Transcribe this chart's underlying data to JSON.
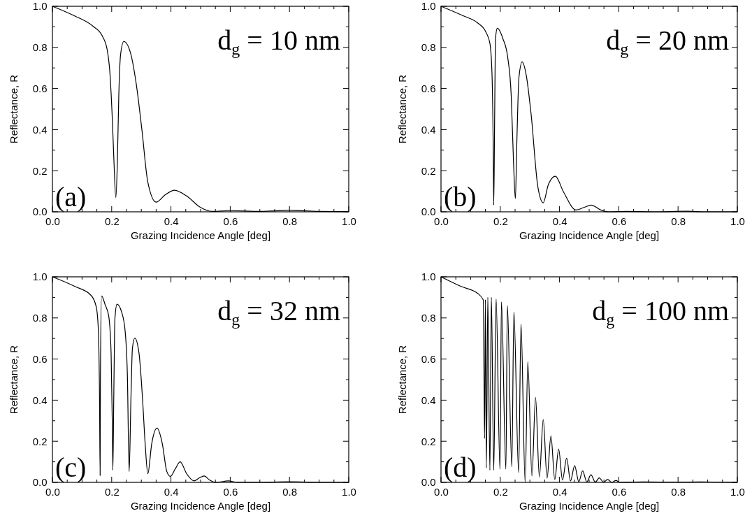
{
  "chart_data": [
    {
      "type": "line",
      "xlabel": "Grazing Incidence Angle [deg]",
      "ylabel": "Reflectance, R",
      "annotations": [
        "d$_{g}$ = 10 nm",
        "(a)"
      ],
      "xlim": [
        0,
        1
      ],
      "ylim": [
        0,
        1
      ],
      "xticks": [
        {
          "value": 0,
          "label": "0.0"
        },
        {
          "value": 0.05,
          "label": null
        },
        {
          "value": 0.1,
          "label": null
        },
        {
          "value": 0.15,
          "label": null
        },
        {
          "value": 0.2,
          "label": "0.2"
        },
        {
          "value": 0.25,
          "label": null
        },
        {
          "value": 0.3,
          "label": null
        },
        {
          "value": 0.35,
          "label": null
        },
        {
          "value": 0.4,
          "label": "0.4"
        },
        {
          "value": 0.45,
          "label": null
        },
        {
          "value": 0.5,
          "label": null
        },
        {
          "value": 0.55,
          "label": null
        },
        {
          "value": 0.6,
          "label": "0.6"
        },
        {
          "value": 0.65,
          "label": null
        },
        {
          "value": 0.7,
          "label": null
        },
        {
          "value": 0.75,
          "label": null
        },
        {
          "value": 0.8,
          "label": "0.8"
        },
        {
          "value": 0.85,
          "label": null
        },
        {
          "value": 0.9,
          "label": null
        },
        {
          "value": 0.95,
          "label": null
        },
        {
          "value": 1,
          "label": "1.0"
        }
      ],
      "yticks": [
        {
          "value": 0,
          "label": "0.0"
        },
        {
          "value": 0.1,
          "label": null
        },
        {
          "value": 0.2,
          "label": "0.2"
        },
        {
          "value": 0.3,
          "label": null
        },
        {
          "value": 0.4,
          "label": "0.4"
        },
        {
          "value": 0.5,
          "label": null
        },
        {
          "value": 0.6,
          "label": "0.6"
        },
        {
          "value": 0.7,
          "label": null
        },
        {
          "value": 0.8,
          "label": "0.8"
        },
        {
          "value": 0.9,
          "label": null
        },
        {
          "value": 1,
          "label": "1.0"
        }
      ],
      "series": [
        {
          "color": "#000000",
          "x": [
            0,
            0.075,
            0.137,
            0.169,
            0.185,
            0.194,
            0.202,
            0.208,
            0.214,
            0.219,
            0.224,
            0.23,
            0.241,
            0.263,
            0.283,
            0.302,
            0.322,
            0.35,
            0.381,
            0.412,
            0.452,
            0.499,
            0.538,
            0.601,
            0.703,
            0.797,
            0.899,
            1
          ],
          "values": [
            1,
            0.953,
            0.903,
            0.854,
            0.787,
            0.676,
            0.455,
            0.233,
            0.069,
            0.233,
            0.565,
            0.765,
            0.829,
            0.776,
            0.621,
            0.399,
            0.144,
            0.047,
            0.083,
            0.105,
            0.078,
            0.022,
            0.002,
            0.006,
            0.002,
            0.007,
            0.002,
            0.001
          ]
        }
      ]
    },
    {
      "type": "line",
      "xlabel": "Grazing Incidence Angle [deg]",
      "ylabel": "Reflectance, R",
      "annotations": [
        "d$_{g}$ = 20 nm",
        "(b)"
      ],
      "xlim": [
        0,
        1
      ],
      "ylim": [
        0,
        1
      ],
      "xticks": [
        {
          "value": 0,
          "label": "0.0"
        },
        {
          "value": 0.05,
          "label": null
        },
        {
          "value": 0.1,
          "label": null
        },
        {
          "value": 0.15,
          "label": null
        },
        {
          "value": 0.2,
          "label": "0.2"
        },
        {
          "value": 0.25,
          "label": null
        },
        {
          "value": 0.3,
          "label": null
        },
        {
          "value": 0.35,
          "label": null
        },
        {
          "value": 0.4,
          "label": "0.4"
        },
        {
          "value": 0.45,
          "label": null
        },
        {
          "value": 0.5,
          "label": null
        },
        {
          "value": 0.55,
          "label": null
        },
        {
          "value": 0.6,
          "label": "0.6"
        },
        {
          "value": 0.65,
          "label": null
        },
        {
          "value": 0.7,
          "label": null
        },
        {
          "value": 0.75,
          "label": null
        },
        {
          "value": 0.8,
          "label": "0.8"
        },
        {
          "value": 0.85,
          "label": null
        },
        {
          "value": 0.9,
          "label": null
        },
        {
          "value": 0.95,
          "label": null
        },
        {
          "value": 1,
          "label": "1.0"
        }
      ],
      "yticks": [
        {
          "value": 0,
          "label": "0.0"
        },
        {
          "value": 0.1,
          "label": null
        },
        {
          "value": 0.2,
          "label": "0.2"
        },
        {
          "value": 0.3,
          "label": null
        },
        {
          "value": 0.4,
          "label": "0.4"
        },
        {
          "value": 0.5,
          "label": null
        },
        {
          "value": 0.6,
          "label": "0.6"
        },
        {
          "value": 0.7,
          "label": null
        },
        {
          "value": 0.8,
          "label": "0.8"
        },
        {
          "value": 0.9,
          "label": null
        },
        {
          "value": 1,
          "label": "1.0"
        }
      ],
      "series": [
        {
          "color": "#000000",
          "x": [
            0,
            0.076,
            0.123,
            0.151,
            0.165,
            0.172,
            0.176,
            0.178,
            0.181,
            0.184,
            0.19,
            0.209,
            0.225,
            0.237,
            0.245,
            0.251,
            0.256,
            0.263,
            0.274,
            0.288,
            0.304,
            0.327,
            0.345,
            0.362,
            0.386,
            0.413,
            0.456,
            0.484,
            0.507,
            0.539,
            0.566,
            0.625,
            0.719,
            0.829,
            0.892,
            1
          ],
          "values": [
            1,
            0.953,
            0.92,
            0.876,
            0.82,
            0.676,
            0.342,
            0.033,
            0.453,
            0.842,
            0.893,
            0.842,
            0.753,
            0.564,
            0.231,
            0.064,
            0.342,
            0.653,
            0.729,
            0.662,
            0.476,
            0.12,
            0.044,
            0.131,
            0.173,
            0.098,
            0.009,
            0.022,
            0.033,
            0.009,
            0,
            0.002,
            0,
            0.003,
            0,
            0
          ]
        }
      ]
    },
    {
      "type": "line",
      "xlabel": "Grazing Incidence Angle [deg]",
      "ylabel": "Reflectance, R",
      "annotations": [
        "d$_{g}$ = 32 nm",
        "(c)"
      ],
      "xlim": [
        0,
        1
      ],
      "ylim": [
        0,
        1
      ],
      "xticks": [
        {
          "value": 0,
          "label": "0.0"
        },
        {
          "value": 0.05,
          "label": null
        },
        {
          "value": 0.1,
          "label": null
        },
        {
          "value": 0.15,
          "label": null
        },
        {
          "value": 0.2,
          "label": "0.2"
        },
        {
          "value": 0.25,
          "label": null
        },
        {
          "value": 0.3,
          "label": null
        },
        {
          "value": 0.35,
          "label": null
        },
        {
          "value": 0.4,
          "label": "0.4"
        },
        {
          "value": 0.45,
          "label": null
        },
        {
          "value": 0.5,
          "label": null
        },
        {
          "value": 0.55,
          "label": null
        },
        {
          "value": 0.6,
          "label": "0.6"
        },
        {
          "value": 0.65,
          "label": null
        },
        {
          "value": 0.7,
          "label": null
        },
        {
          "value": 0.75,
          "label": null
        },
        {
          "value": 0.8,
          "label": "0.8"
        },
        {
          "value": 0.85,
          "label": null
        },
        {
          "value": 0.9,
          "label": null
        },
        {
          "value": 0.95,
          "label": null
        },
        {
          "value": 1,
          "label": "1.0"
        }
      ],
      "yticks": [
        {
          "value": 0,
          "label": "0.0"
        },
        {
          "value": 0.1,
          "label": null
        },
        {
          "value": 0.2,
          "label": "0.2"
        },
        {
          "value": 0.3,
          "label": null
        },
        {
          "value": 0.4,
          "label": "0.4"
        },
        {
          "value": 0.5,
          "label": null
        },
        {
          "value": 0.6,
          "label": "0.6"
        },
        {
          "value": 0.7,
          "label": null
        },
        {
          "value": 0.8,
          "label": "0.8"
        },
        {
          "value": 0.9,
          "label": null
        },
        {
          "value": 1,
          "label": "1.0"
        }
      ],
      "series": [
        {
          "color": "#000000",
          "x": [
            0,
            0.076,
            0.131,
            0.148,
            0.155,
            0.159,
            0.161,
            0.162,
            0.166,
            0.178,
            0.19,
            0.198,
            0.202,
            0.204,
            0.207,
            0.211,
            0.218,
            0.233,
            0.245,
            0.253,
            0.259,
            0.265,
            0.27,
            0.278,
            0.292,
            0.304,
            0.313,
            0.322,
            0.335,
            0.353,
            0.371,
            0.386,
            0.398,
            0.414,
            0.431,
            0.453,
            0.478,
            0.496,
            0.512,
            0.531,
            0.551,
            0.594,
            0.626,
            0.704,
            0.799,
            0.9,
            1
          ],
          "values": [
            1,
            0.953,
            0.909,
            0.853,
            0.742,
            0.409,
            0.033,
            0.52,
            0.907,
            0.864,
            0.809,
            0.631,
            0.298,
            0.059,
            0.409,
            0.798,
            0.867,
            0.831,
            0.742,
            0.52,
            0.053,
            0.409,
            0.653,
            0.702,
            0.631,
            0.409,
            0.187,
            0.042,
            0.187,
            0.264,
            0.187,
            0.053,
            0.029,
            0.064,
            0.1,
            0.042,
            0.007,
            0.022,
            0.031,
            0.011,
            0,
            0.007,
            0,
            0,
            0.003,
            0,
            0
          ]
        }
      ]
    },
    {
      "type": "line",
      "xlabel": "Grazing Incidence Angle [deg]",
      "ylabel": "Reflectance, R",
      "annotations": [
        "d$_{g}$ = 100 nm",
        "(d)"
      ],
      "xlim": [
        0,
        1
      ],
      "ylim": [
        0,
        1
      ],
      "xticks": [
        {
          "value": 0,
          "label": "0.0"
        },
        {
          "value": 0.05,
          "label": null
        },
        {
          "value": 0.1,
          "label": null
        },
        {
          "value": 0.15,
          "label": null
        },
        {
          "value": 0.2,
          "label": "0.2"
        },
        {
          "value": 0.25,
          "label": null
        },
        {
          "value": 0.3,
          "label": null
        },
        {
          "value": 0.35,
          "label": null
        },
        {
          "value": 0.4,
          "label": "0.4"
        },
        {
          "value": 0.45,
          "label": null
        },
        {
          "value": 0.5,
          "label": null
        },
        {
          "value": 0.55,
          "label": null
        },
        {
          "value": 0.6,
          "label": "0.6"
        },
        {
          "value": 0.65,
          "label": null
        },
        {
          "value": 0.7,
          "label": null
        },
        {
          "value": 0.75,
          "label": null
        },
        {
          "value": 0.8,
          "label": "0.8"
        },
        {
          "value": 0.85,
          "label": null
        },
        {
          "value": 0.9,
          "label": null
        },
        {
          "value": 0.95,
          "label": null
        },
        {
          "value": 1,
          "label": "1.0"
        }
      ],
      "yticks": [
        {
          "value": 0,
          "label": "0.0"
        },
        {
          "value": 0.1,
          "label": null
        },
        {
          "value": 0.2,
          "label": "0.2"
        },
        {
          "value": 0.3,
          "label": null
        },
        {
          "value": 0.4,
          "label": "0.4"
        },
        {
          "value": 0.5,
          "label": null
        },
        {
          "value": 0.6,
          "label": "0.6"
        },
        {
          "value": 0.7,
          "label": null
        },
        {
          "value": 0.8,
          "label": "0.8"
        },
        {
          "value": 0.9,
          "label": null
        },
        {
          "value": 1,
          "label": "1.0"
        }
      ],
      "series": [
        {
          "color": "#000000",
          "x": [
            0,
            0.068,
            0.123,
            0.143,
            0.147,
            0.15,
            0.153,
            0.158,
            0.165,
            0.17,
            0.178,
            0.186,
            0.199,
            0.204,
            0.219,
            0.224,
            0.239,
            0.246,
            0.262,
            0.27,
            0.284,
            0.293,
            0.307,
            0.319,
            0.332,
            0.345,
            0.358,
            0.371,
            0.384,
            0.397,
            0.41,
            0.424,
            0.437,
            0.451,
            0.465,
            0.478,
            0.492,
            0.506,
            0.521,
            0.534,
            0.549,
            0.562,
            0.576,
            0.59,
            0.605,
            0.68,
            0.798,
            0.876,
            1
          ],
          "values": [
            1,
            0.953,
            0.92,
            0.887,
            0.214,
            0.889,
            0.07,
            0.9,
            0.059,
            0.9,
            0.059,
            0.892,
            0.064,
            0.878,
            0.064,
            0.859,
            0.076,
            0.829,
            0.048,
            0.77,
            0,
            0.587,
            0.031,
            0.414,
            0.026,
            0.306,
            0.02,
            0.226,
            0.014,
            0.162,
            0.011,
            0.118,
            0.007,
            0.081,
            0.003,
            0.056,
            0.002,
            0.037,
            0.001,
            0.022,
            0,
            0.014,
            0,
            0.009,
            0,
            0.002,
            0.001,
            0.002,
            0
          ]
        }
      ]
    }
  ]
}
